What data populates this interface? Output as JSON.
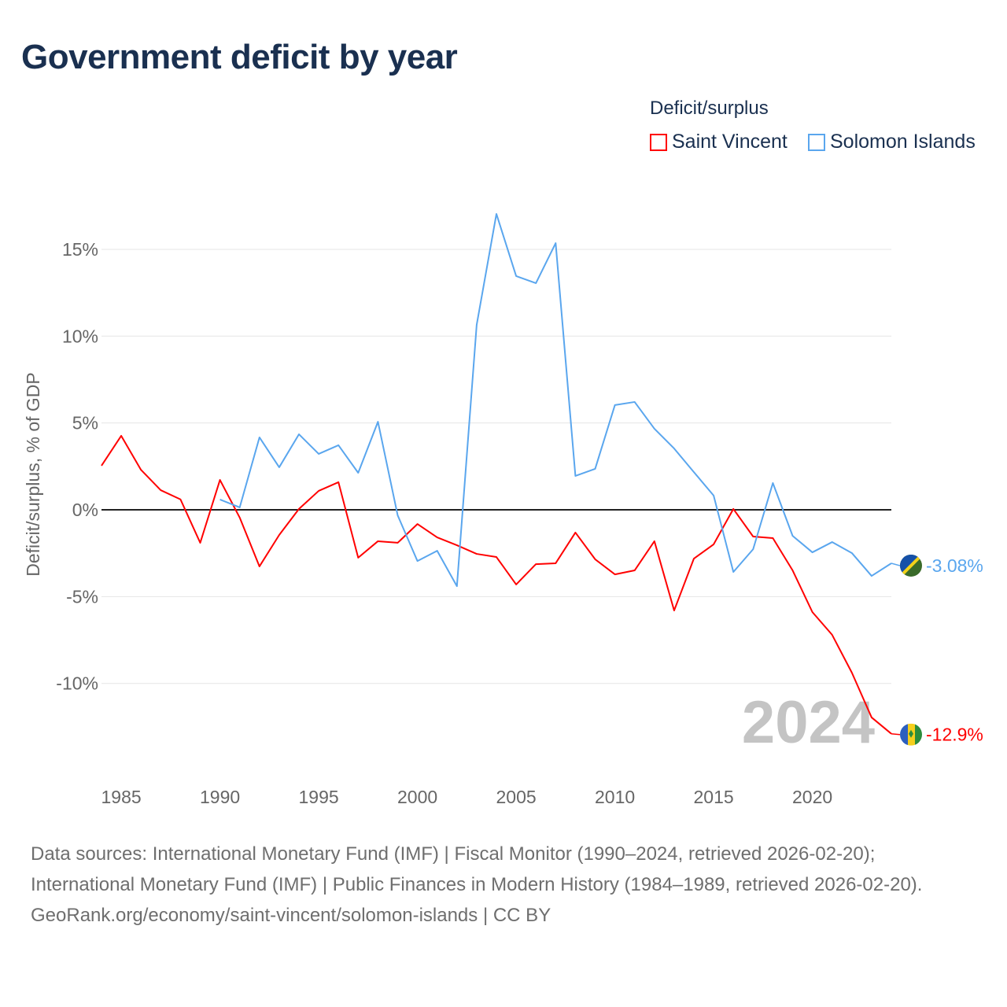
{
  "title": "Government deficit by year",
  "legend": {
    "title": "Deficit/surplus",
    "items": [
      "Saint Vincent",
      "Solomon Islands"
    ]
  },
  "watermark_year": "2024",
  "footer": {
    "sources": "Data sources: International Monetary Fund (IMF) | Fiscal Monitor (1990–2024, retrieved 2026-02-20); International Monetary Fund (IMF) | Public Finances in Modern History (1984–1989, retrieved 2026-02-20).",
    "link": "GeoRank.org/economy/saint-vincent/solomon-islands | CC BY"
  },
  "chart_data": {
    "type": "line",
    "title": "Government deficit by year",
    "xlabel": "",
    "ylabel": "Deficit/surplus, % of GDP",
    "xlim": [
      1984,
      2024
    ],
    "ylim": [
      -13.5,
      17.5
    ],
    "x_ticks": [
      1985,
      1990,
      1995,
      2000,
      2005,
      2010,
      2015,
      2020
    ],
    "y_ticks": [
      15,
      10,
      5,
      0,
      -5,
      -10
    ],
    "y_tick_labels": [
      "15%",
      "10%",
      "5%",
      "0%",
      "-5%",
      "-10%"
    ],
    "grid": true,
    "legend_position": "top-right",
    "series": [
      {
        "name": "Saint Vincent",
        "color": "#ff0000",
        "end_label": "-12.9%",
        "x_start": 1984,
        "values": [
          2.54,
          4.26,
          2.3,
          1.13,
          0.6,
          -1.9,
          1.72,
          -0.45,
          -3.26,
          -1.45,
          0.05,
          1.09,
          1.59,
          -2.76,
          -1.81,
          -1.9,
          -0.82,
          -1.59,
          -2.04,
          -2.54,
          -2.72,
          -4.3,
          -3.13,
          -3.08,
          -1.31,
          -2.85,
          -3.72,
          -3.49,
          -1.81,
          -5.8,
          -2.81,
          -1.99,
          0.05,
          -1.54,
          -1.63,
          -3.49,
          -5.89,
          -7.2,
          -9.38,
          -11.96,
          -12.9
        ]
      },
      {
        "name": "Solomon Islands",
        "color": "#5aa6ee",
        "end_label": "-3.08%",
        "x_start": 1990,
        "values": [
          0.59,
          0.14,
          4.17,
          2.45,
          4.35,
          3.22,
          3.72,
          2.13,
          5.07,
          -0.32,
          -2.95,
          -2.36,
          -4.4,
          10.65,
          17.04,
          13.46,
          13.05,
          15.36,
          1.95,
          2.36,
          6.03,
          6.21,
          4.67,
          3.53,
          2.17,
          0.82,
          -3.58,
          -2.27,
          1.54,
          -1.5,
          -2.45,
          -1.86,
          -2.49,
          -3.81,
          -3.08
        ]
      }
    ]
  }
}
